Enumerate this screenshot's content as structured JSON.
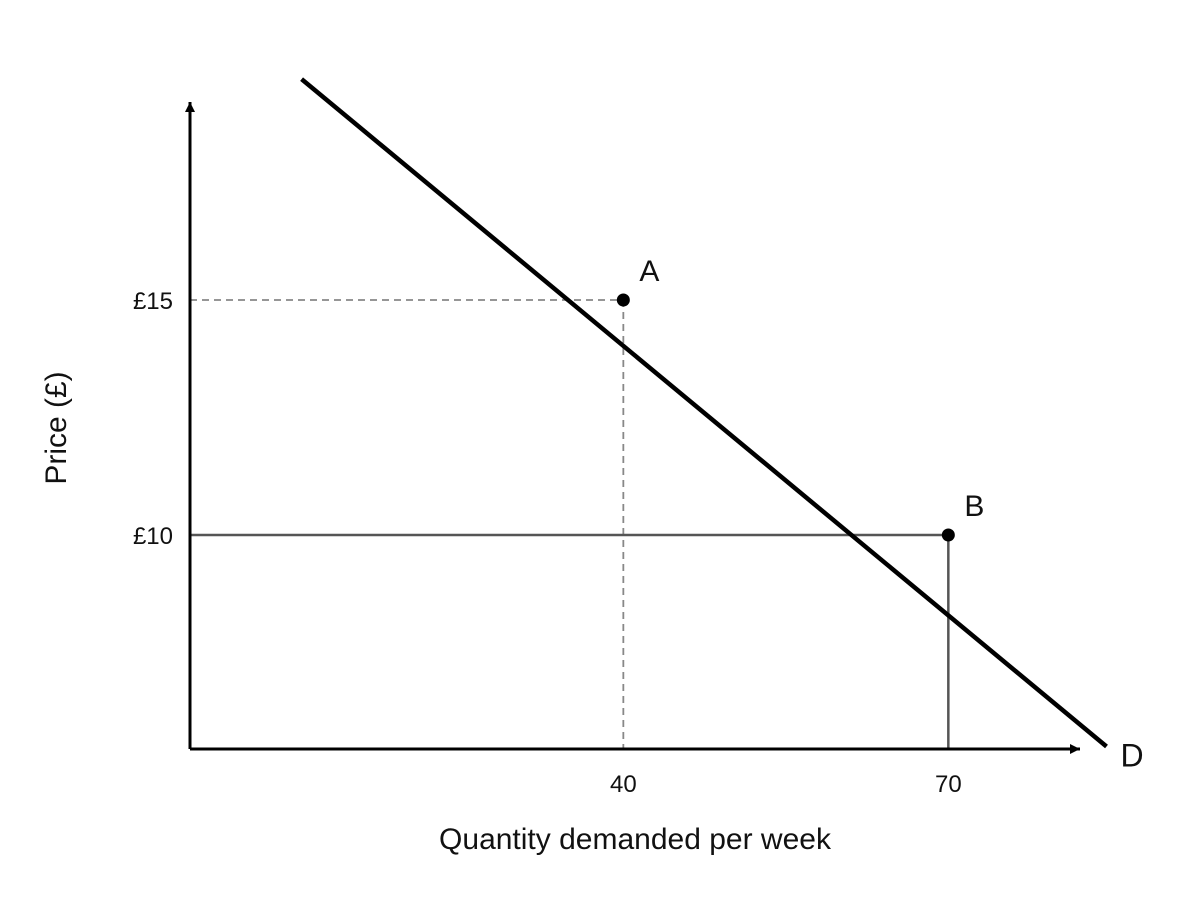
{
  "chart_data": {
    "type": "line",
    "title": "",
    "xlabel": "Quantity demanded per week",
    "ylabel": "Price (£)",
    "xlim": [
      0,
      88
    ],
    "ylim": [
      5,
      20
    ],
    "grid": false,
    "legend": "none",
    "series": [
      {
        "name": "D",
        "color": "#000000",
        "x": [
          10.3,
          84.6
        ],
        "y": [
          19.7,
          5.5
        ]
      }
    ],
    "points": [
      {
        "label": "A",
        "x": 40,
        "y": 15,
        "guide": "dashed"
      },
      {
        "label": "B",
        "x": 70,
        "y": 10,
        "guide": "solid"
      }
    ],
    "x_ticks": [
      {
        "value": 40,
        "label": "40"
      },
      {
        "value": 70,
        "label": "70"
      }
    ],
    "y_ticks": [
      {
        "value": 15,
        "label": "£15"
      },
      {
        "value": 10,
        "label": "£10"
      }
    ],
    "colors": {
      "axis": "#000000",
      "curve": "#000000",
      "dashed_guide": "#888888",
      "solid_guide": "#555555"
    }
  }
}
